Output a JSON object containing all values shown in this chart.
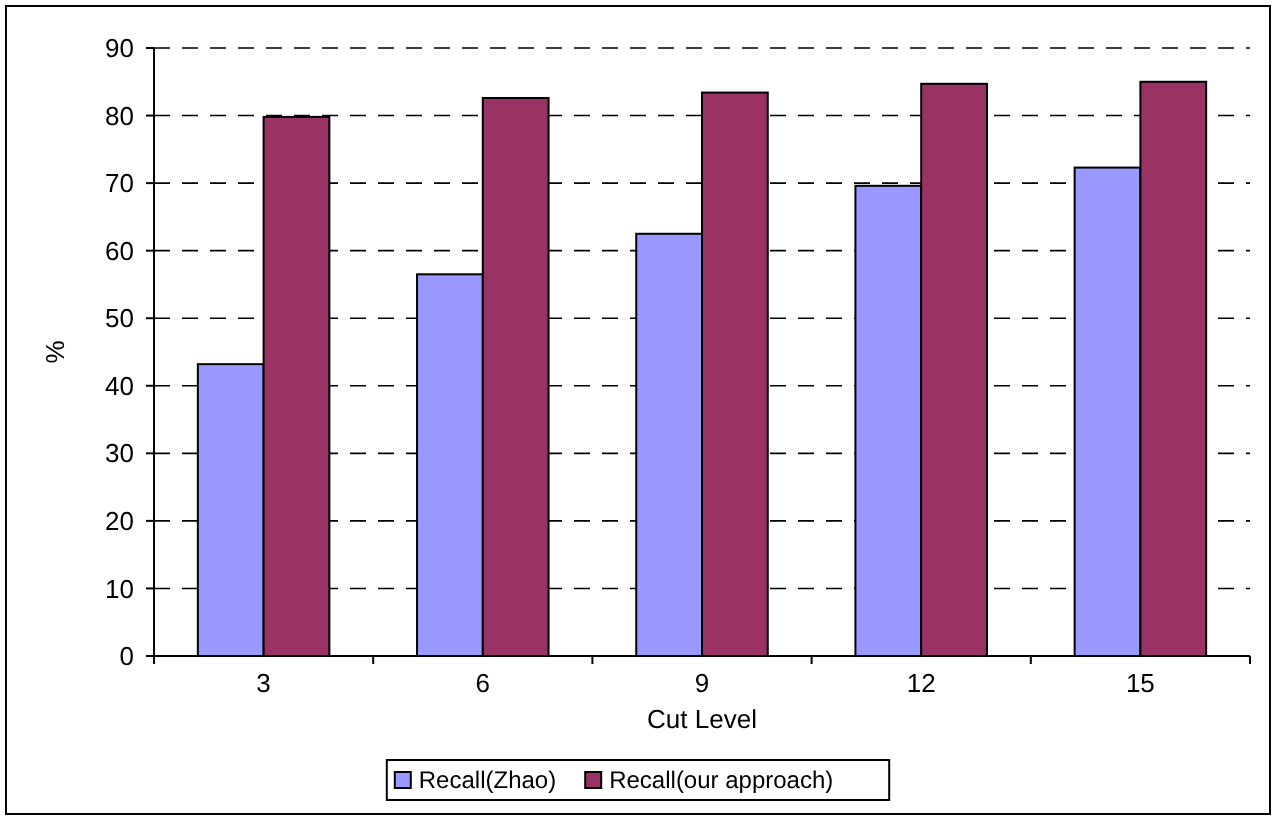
{
  "chart_data": {
    "type": "bar",
    "xlabel": "Cut Level",
    "ylabel": "%",
    "categories": [
      "3",
      "6",
      "9",
      "12",
      "15"
    ],
    "series": [
      {
        "name": "Recall(Zhao)",
        "color": "#9999ff",
        "values": [
          43.2,
          56.5,
          62.5,
          69.6,
          72.3
        ]
      },
      {
        "name": "Recall(our approach)",
        "color": "#993366",
        "values": [
          79.8,
          82.6,
          83.4,
          84.7,
          85.0
        ]
      }
    ],
    "ylim": [
      0,
      90
    ],
    "yticks": [
      0,
      10,
      20,
      30,
      40,
      50,
      60,
      70,
      80,
      90
    ],
    "grid": "y",
    "legend": "bottom"
  }
}
